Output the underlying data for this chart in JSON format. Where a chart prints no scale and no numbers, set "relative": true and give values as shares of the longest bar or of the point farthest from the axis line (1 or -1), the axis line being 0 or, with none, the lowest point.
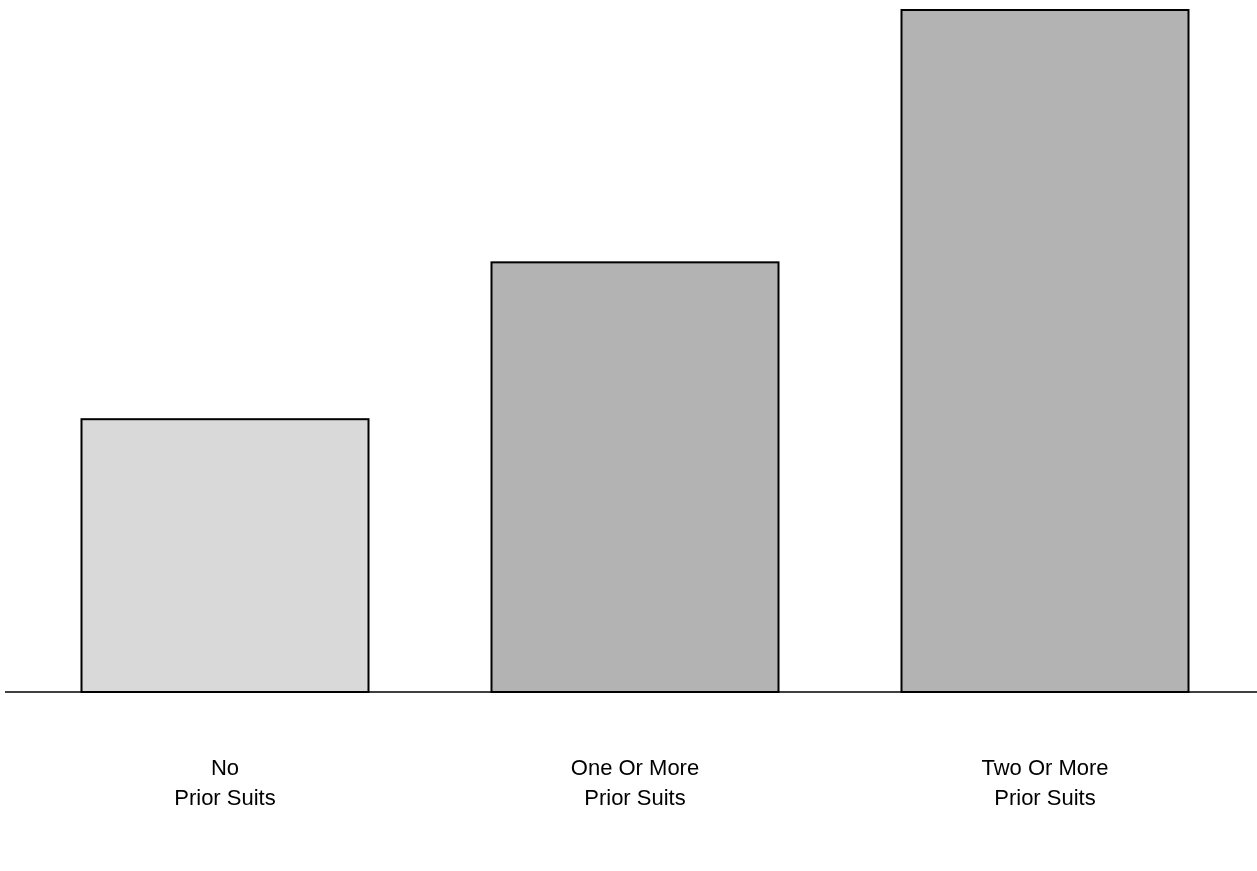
{
  "chart_data": {
    "type": "bar",
    "relative": true,
    "categories": [
      "No\nPrior Suits",
      "One Or More\nPrior Suits",
      "Two Or More\nPrior Suits"
    ],
    "values": [
      0.4,
      0.63,
      1
    ],
    "colors": [
      "#d9d9d9",
      "#b3b3b3",
      "#b3b3b3"
    ]
  }
}
